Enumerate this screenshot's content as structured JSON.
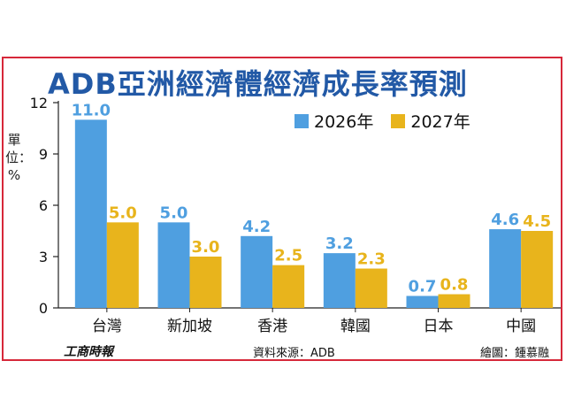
{
  "colors": {
    "series_2026": "#4f9fe0",
    "series_2027": "#e8b41c",
    "frame": "#d6283a",
    "title": "#2259a6"
  },
  "chart_data": {
    "type": "bar",
    "title": "ADB亞洲經濟體經濟成長率預測",
    "ylabel": "單位：%",
    "categories": [
      "台灣",
      "新加坡",
      "香港",
      "韓國",
      "日本",
      "中國"
    ],
    "series": [
      {
        "name": "2026年",
        "values": [
          11.0,
          5.0,
          4.2,
          3.2,
          0.7,
          4.6
        ],
        "labels": [
          "11.0",
          "5.0",
          "4.2",
          "3.2",
          "0.7",
          "4.6"
        ]
      },
      {
        "name": "2027年",
        "values": [
          5.0,
          3.0,
          2.5,
          2.3,
          0.8,
          4.5
        ],
        "labels": [
          "5.0",
          "3.0",
          "2.5",
          "2.3",
          "0.8",
          "4.5"
        ]
      }
    ],
    "ylim": [
      0,
      12
    ],
    "yticks": [
      0,
      3,
      6,
      9,
      12
    ],
    "grid": false,
    "legend": "top-right"
  },
  "footer": {
    "logo": "工商時報",
    "source": "資料來源：ADB",
    "credit": "繪圖：鍾慕融"
  }
}
